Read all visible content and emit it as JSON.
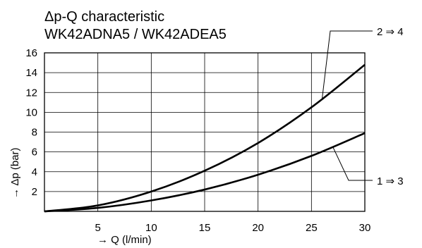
{
  "chart_data": {
    "type": "line",
    "title": "Δp-Q characteristic",
    "subtitle": "WK42ADNA5 / WK42ADEA5",
    "xlabel": "→ Q (l/min)",
    "ylabel": "→ Δp (bar)",
    "xlim": [
      0,
      30
    ],
    "ylim": [
      0,
      16
    ],
    "xticks": [
      "5",
      "10",
      "15",
      "20",
      "25",
      "30"
    ],
    "yticks": [
      "2",
      "4",
      "6",
      "8",
      "10",
      "12",
      "14",
      "16"
    ],
    "grid": true,
    "series": [
      {
        "name": "2 ⇒ 4",
        "x": [
          0,
          5,
          10,
          15,
          20,
          25,
          30
        ],
        "y": [
          0,
          0.6,
          2.0,
          4.1,
          6.9,
          10.5,
          14.8
        ]
      },
      {
        "name": "1 ⇒ 3",
        "x": [
          0,
          5,
          10,
          15,
          20,
          25,
          30
        ],
        "y": [
          0,
          0.35,
          1.1,
          2.2,
          3.7,
          5.6,
          7.9
        ]
      }
    ]
  }
}
